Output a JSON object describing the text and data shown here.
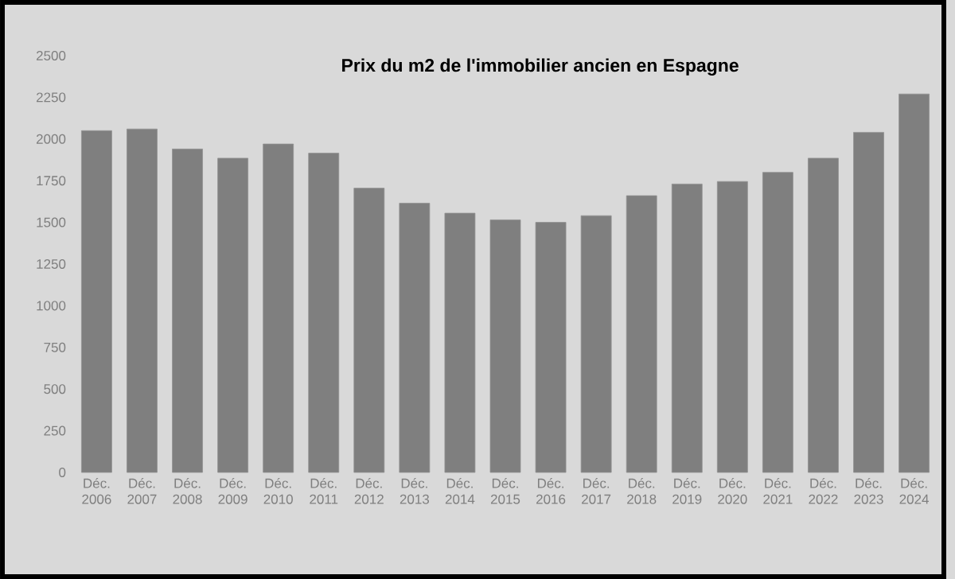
{
  "chart_data": {
    "type": "bar",
    "title": "Prix du m2 de l'immobilier ancien en Espagne",
    "categories": [
      "Déc. 2006",
      "Déc. 2007",
      "Déc. 2008",
      "Déc. 2009",
      "Déc. 2010",
      "Déc. 2011",
      "Déc. 2012",
      "Déc. 2013",
      "Déc. 2014",
      "Déc. 2015",
      "Déc. 2016",
      "Déc. 2017",
      "Déc. 2018",
      "Déc. 2019",
      "Déc. 2020",
      "Déc. 2021",
      "Déc. 2022",
      "Déc. 2023",
      "Déc. 2024"
    ],
    "values": [
      2050,
      2060,
      1940,
      1885,
      1970,
      1915,
      1705,
      1615,
      1555,
      1515,
      1500,
      1540,
      1660,
      1730,
      1745,
      1800,
      1885,
      2040,
      2270
    ],
    "color": "#7f7f7f",
    "ylim": [
      0,
      2500
    ],
    "yticks": [
      0,
      250,
      500,
      750,
      1000,
      1250,
      1500,
      1750,
      2000,
      2250,
      2500
    ]
  }
}
